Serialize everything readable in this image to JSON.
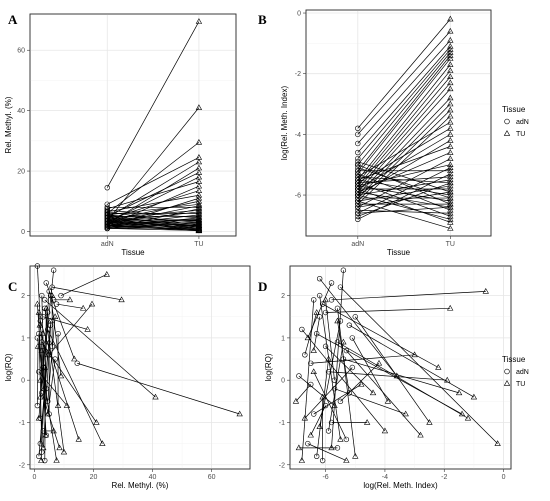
{
  "chart_data": [
    {
      "panel": "A",
      "type": "line",
      "xlabel": "Tissue",
      "ylabel": "Rel. Methyl. (%)",
      "categories": [
        "adN",
        "TU"
      ],
      "ylim": [
        -1.5,
        72
      ],
      "yticks": [
        0,
        20,
        40,
        60
      ],
      "grid": true,
      "pairs": [
        [
          14.5,
          69.5
        ],
        [
          3.5,
          41.0
        ],
        [
          6.0,
          29.5
        ],
        [
          9.0,
          24.5
        ],
        [
          4.5,
          23.0
        ],
        [
          2.5,
          21.0
        ],
        [
          5.0,
          19.5
        ],
        [
          3.0,
          18.0
        ],
        [
          7.5,
          16.5
        ],
        [
          2.0,
          15.0
        ],
        [
          4.0,
          13.5
        ],
        [
          6.5,
          12.0
        ],
        [
          1.5,
          11.0
        ],
        [
          3.5,
          10.0
        ],
        [
          5.5,
          9.0
        ],
        [
          2.5,
          8.5
        ],
        [
          8.0,
          8.0
        ],
        [
          1.0,
          7.5
        ],
        [
          4.5,
          7.0
        ],
        [
          3.0,
          6.5
        ],
        [
          6.0,
          6.0
        ],
        [
          2.0,
          5.5
        ],
        [
          5.0,
          5.0
        ],
        [
          1.5,
          4.5
        ],
        [
          7.0,
          4.5
        ],
        [
          3.5,
          4.0
        ],
        [
          2.5,
          3.8
        ],
        [
          4.0,
          3.5
        ],
        [
          1.0,
          3.2
        ],
        [
          5.5,
          3.0
        ],
        [
          3.0,
          2.8
        ],
        [
          2.0,
          2.5
        ],
        [
          4.5,
          2.3
        ],
        [
          1.5,
          2.0
        ],
        [
          6.5,
          2.0
        ],
        [
          3.5,
          1.8
        ],
        [
          2.5,
          1.5
        ],
        [
          5.0,
          1.5
        ],
        [
          1.0,
          1.2
        ],
        [
          4.0,
          1.0
        ],
        [
          3.0,
          1.0
        ],
        [
          2.0,
          0.8
        ],
        [
          1.5,
          0.6
        ],
        [
          3.5,
          0.5
        ],
        [
          2.5,
          0.4
        ],
        [
          1.0,
          0.3
        ],
        [
          4.5,
          0.3
        ],
        [
          2.0,
          0.2
        ],
        [
          3.0,
          2.0
        ],
        [
          5.5,
          1.0
        ]
      ]
    },
    {
      "panel": "B",
      "type": "line",
      "xlabel": "Tissue",
      "ylabel": "log(Rel. Meth. Index)",
      "categories": [
        "adN",
        "TU"
      ],
      "ylim": [
        -7.35,
        0.1
      ],
      "yticks": [
        0,
        -2,
        -4,
        -6
      ],
      "grid": true,
      "pairs": [
        [
          -3.8,
          -0.2
        ],
        [
          -4.0,
          -0.6
        ],
        [
          -4.3,
          -0.9
        ],
        [
          -4.6,
          -1.1
        ],
        [
          -4.8,
          -1.2
        ],
        [
          -5.0,
          -1.3
        ],
        [
          -5.2,
          -1.4
        ],
        [
          -5.3,
          -1.5
        ],
        [
          -5.5,
          -1.7
        ],
        [
          -5.6,
          -1.9
        ],
        [
          -5.7,
          -2.1
        ],
        [
          -5.8,
          -2.3
        ],
        [
          -5.9,
          -2.5
        ],
        [
          -6.0,
          -2.8
        ],
        [
          -6.1,
          -3.0
        ],
        [
          -6.2,
          -3.2
        ],
        [
          -6.3,
          -3.4
        ],
        [
          -5.4,
          -3.6
        ],
        [
          -5.6,
          -3.8
        ],
        [
          -5.8,
          -4.0
        ],
        [
          -6.0,
          -4.2
        ],
        [
          -5.5,
          -4.4
        ],
        [
          -5.9,
          -4.6
        ],
        [
          -6.4,
          -4.8
        ],
        [
          -5.7,
          -5.0
        ],
        [
          -6.6,
          -5.1
        ],
        [
          -5.2,
          -5.2
        ],
        [
          -6.8,
          -5.3
        ],
        [
          -5.6,
          -5.4
        ],
        [
          -6.0,
          -5.5
        ],
        [
          -5.4,
          -5.6
        ],
        [
          -6.2,
          -5.7
        ],
        [
          -5.8,
          -5.8
        ],
        [
          -6.4,
          -5.9
        ],
        [
          -5.5,
          -6.0
        ],
        [
          -6.1,
          -6.1
        ],
        [
          -5.7,
          -6.2
        ],
        [
          -6.3,
          -6.3
        ],
        [
          -5.9,
          -6.4
        ],
        [
          -5.3,
          -6.5
        ],
        [
          -6.5,
          -6.6
        ],
        [
          -5.6,
          -6.7
        ],
        [
          -6.0,
          -6.8
        ],
        [
          -5.8,
          -6.9
        ],
        [
          -6.2,
          -7.1
        ],
        [
          -5.0,
          -6.3
        ],
        [
          -4.9,
          -5.9
        ],
        [
          -6.7,
          -5.6
        ],
        [
          -5.1,
          -6.1
        ],
        [
          -6.6,
          -6.4
        ]
      ]
    },
    {
      "panel": "C",
      "type": "scatter",
      "xlabel": "Rel. Methyl. (%)",
      "ylabel": "log(RQ)",
      "xlim": [
        -1.5,
        73
      ],
      "ylim": [
        -2.1,
        2.7
      ],
      "xticks": [
        0,
        20,
        40,
        60
      ],
      "yticks": [
        -2,
        -1,
        0,
        1,
        2
      ],
      "grid": true,
      "pairs": [
        {
          "adN": [
            14.5,
            0.4
          ],
          "TU": [
            69.5,
            -0.8
          ]
        },
        {
          "adN": [
            3.5,
            1.9
          ],
          "TU": [
            41.0,
            -0.4
          ]
        },
        {
          "adN": [
            6.0,
            2.2
          ],
          "TU": [
            29.5,
            1.9
          ]
        },
        {
          "adN": [
            9.0,
            2.0
          ],
          "TU": [
            24.5,
            2.5
          ]
        },
        {
          "adN": [
            4.5,
            1.2
          ],
          "TU": [
            23.0,
            -1.5
          ]
        },
        {
          "adN": [
            2.5,
            0.9
          ],
          "TU": [
            21.0,
            -1.0
          ]
        },
        {
          "adN": [
            5.0,
            0.6
          ],
          "TU": [
            19.5,
            1.8
          ]
        },
        {
          "adN": [
            3.0,
            1.5
          ],
          "TU": [
            18.0,
            1.2
          ]
        },
        {
          "adN": [
            7.5,
            1.8
          ],
          "TU": [
            16.5,
            1.7
          ]
        },
        {
          "adN": [
            2.0,
            1.4
          ],
          "TU": [
            15.0,
            -1.4
          ]
        },
        {
          "adN": [
            4.0,
            2.3
          ],
          "TU": [
            13.5,
            0.5
          ]
        },
        {
          "adN": [
            6.5,
            1.9
          ],
          "TU": [
            12.0,
            1.9
          ]
        },
        {
          "adN": [
            1.5,
            0.2
          ],
          "TU": [
            11.0,
            -0.6
          ]
        },
        {
          "adN": [
            3.5,
            1.7
          ],
          "TU": [
            10.0,
            -1.7
          ]
        },
        {
          "adN": [
            5.5,
            2.0
          ],
          "TU": [
            9.0,
            0.1
          ]
        },
        {
          "adN": [
            2.5,
            -0.3
          ],
          "TU": [
            8.5,
            -1.6
          ]
        },
        {
          "adN": [
            8.0,
            1.1
          ],
          "TU": [
            8.0,
            -0.6
          ]
        },
        {
          "adN": [
            1.0,
            1.0
          ],
          "TU": [
            7.5,
            -1.9
          ]
        },
        {
          "adN": [
            4.5,
            -0.5
          ],
          "TU": [
            7.0,
            1.5
          ]
        },
        {
          "adN": [
            3.0,
            -1.2
          ],
          "TU": [
            6.5,
            -1.2
          ]
        },
        {
          "adN": [
            6.0,
            0.8
          ],
          "TU": [
            6.0,
            2.0
          ]
        },
        {
          "adN": [
            2.0,
            -1.5
          ],
          "TU": [
            5.5,
            1.4
          ]
        },
        {
          "adN": [
            5.0,
            -0.8
          ],
          "TU": [
            5.0,
            0.9
          ]
        },
        {
          "adN": [
            1.5,
            -1.8
          ],
          "TU": [
            4.5,
            0.6
          ]
        },
        {
          "adN": [
            7.0,
            0.5
          ],
          "TU": [
            4.5,
            -0.8
          ]
        },
        {
          "adN": [
            3.5,
            -1.9
          ],
          "TU": [
            4.0,
            1.7
          ]
        },
        {
          "adN": [
            2.5,
            2.0
          ],
          "TU": [
            3.8,
            -1.3
          ]
        },
        {
          "adN": [
            4.0,
            -0.2
          ],
          "TU": [
            3.5,
            0.3
          ]
        },
        {
          "adN": [
            1.0,
            2.7
          ],
          "TU": [
            3.2,
            -0.2
          ]
        },
        {
          "adN": [
            5.5,
            1.3
          ],
          "TU": [
            3.0,
            -1.6
          ]
        },
        {
          "adN": [
            3.0,
            0.3
          ],
          "TU": [
            2.8,
            1.1
          ]
        },
        {
          "adN": [
            2.0,
            -0.9
          ],
          "TU": [
            2.5,
            0.7
          ]
        },
        {
          "adN": [
            4.5,
            1.6
          ],
          "TU": [
            2.3,
            -1.9
          ]
        },
        {
          "adN": [
            1.5,
            1.1
          ],
          "TU": [
            2.0,
            0.0
          ]
        },
        {
          "adN": [
            6.5,
            2.6
          ],
          "TU": [
            2.0,
            -0.4
          ]
        },
        {
          "adN": [
            3.5,
            0.7
          ],
          "TU": [
            1.8,
            1.3
          ]
        },
        {
          "adN": [
            2.5,
            -1.7
          ],
          "TU": [
            1.5,
            1.6
          ]
        },
        {
          "adN": [
            5.0,
            2.1
          ],
          "TU": [
            1.5,
            -0.9
          ]
        },
        {
          "adN": [
            1.0,
            -0.6
          ],
          "TU": [
            1.2,
            0.8
          ]
        },
        {
          "adN": [
            4.0,
            -1.3
          ],
          "TU": [
            1.0,
            1.8
          ]
        }
      ]
    },
    {
      "panel": "D",
      "type": "scatter",
      "xlabel": "log(Rel. Meth. Index)",
      "ylabel": "log(RQ)",
      "xlim": [
        -7.2,
        0.25
      ],
      "ylim": [
        -2.1,
        2.7
      ],
      "xticks": [
        -6,
        -4,
        -2,
        0
      ],
      "yticks": [
        -2,
        -1,
        0,
        1,
        2
      ],
      "grid": true,
      "pairs": [
        {
          "adN": [
            -5.5,
            2.2
          ],
          "TU": [
            -0.2,
            -1.5
          ]
        },
        {
          "adN": [
            -5.8,
            1.9
          ],
          "TU": [
            -0.6,
            2.1
          ]
        },
        {
          "adN": [
            -6.0,
            1.6
          ],
          "TU": [
            -1.8,
            1.7
          ]
        },
        {
          "adN": [
            -5.2,
            1.3
          ],
          "TU": [
            -1.0,
            -0.4
          ]
        },
        {
          "adN": [
            -5.6,
            0.9
          ],
          "TU": [
            -1.2,
            -0.9
          ]
        },
        {
          "adN": [
            -6.3,
            1.1
          ],
          "TU": [
            -1.4,
            -0.8
          ]
        },
        {
          "adN": [
            -5.4,
            0.5
          ],
          "TU": [
            -1.5,
            -0.3
          ]
        },
        {
          "adN": [
            -5.9,
            0.2
          ],
          "TU": [
            -1.9,
            0.0
          ]
        },
        {
          "adN": [
            -6.1,
            1.8
          ],
          "TU": [
            -2.2,
            0.3
          ]
        },
        {
          "adN": [
            -5.0,
            1.5
          ],
          "TU": [
            -2.5,
            -1.0
          ]
        },
        {
          "adN": [
            -5.3,
            0.7
          ],
          "TU": [
            -2.8,
            -1.3
          ]
        },
        {
          "adN": [
            -6.5,
            0.4
          ],
          "TU": [
            -3.0,
            0.6
          ]
        },
        {
          "adN": [
            -5.7,
            -0.2
          ],
          "TU": [
            -3.3,
            -0.8
          ]
        },
        {
          "adN": [
            -6.2,
            2.4
          ],
          "TU": [
            -3.6,
            0.1
          ]
        },
        {
          "adN": [
            -5.1,
            1.0
          ],
          "TU": [
            -3.9,
            -0.5
          ]
        },
        {
          "adN": [
            -6.8,
            1.2
          ],
          "TU": [
            -4.0,
            -1.2
          ]
        },
        {
          "adN": [
            -5.5,
            -0.5
          ],
          "TU": [
            -4.2,
            0.4
          ]
        },
        {
          "adN": [
            -6.0,
            0.8
          ],
          "TU": [
            -4.4,
            -0.3
          ]
        },
        {
          "adN": [
            -5.8,
            -1.0
          ],
          "TU": [
            -4.6,
            -1.0
          ]
        },
        {
          "adN": [
            -6.4,
            -0.8
          ],
          "TU": [
            -4.8,
            -0.1
          ]
        },
        {
          "adN": [
            -5.6,
            1.7
          ],
          "TU": [
            -5.0,
            -1.8
          ]
        },
        {
          "adN": [
            -6.6,
            -1.5
          ],
          "TU": [
            -5.3,
            -1.9
          ]
        },
        {
          "adN": [
            -5.9,
            -1.2
          ],
          "TU": [
            -5.4,
            0.9
          ]
        },
        {
          "adN": [
            -6.2,
            2.0
          ],
          "TU": [
            -5.5,
            -1.4
          ]
        },
        {
          "adN": [
            -5.2,
            -0.3
          ],
          "TU": [
            -5.6,
            1.4
          ]
        },
        {
          "adN": [
            -6.9,
            0.1
          ],
          "TU": [
            -5.7,
            -0.6
          ]
        },
        {
          "adN": [
            -5.4,
            2.6
          ],
          "TU": [
            -5.8,
            -1.6
          ]
        },
        {
          "adN": [
            -6.3,
            -1.8
          ],
          "TU": [
            -5.9,
            0.5
          ]
        },
        {
          "adN": [
            -5.7,
            0.0
          ],
          "TU": [
            -6.0,
            1.9
          ]
        },
        {
          "adN": [
            -6.1,
            -1.9
          ],
          "TU": [
            -6.1,
            -0.4
          ]
        },
        {
          "adN": [
            -5.5,
            1.4
          ],
          "TU": [
            -6.2,
            -1.1
          ]
        },
        {
          "adN": [
            -6.7,
            0.6
          ],
          "TU": [
            -6.3,
            1.6
          ]
        },
        {
          "adN": [
            -5.3,
            -1.4
          ],
          "TU": [
            -6.4,
            0.2
          ]
        },
        {
          "adN": [
            -6.0,
            -0.6
          ],
          "TU": [
            -6.5,
            -1.3
          ]
        },
        {
          "adN": [
            -5.8,
            2.3
          ],
          "TU": [
            -6.6,
            1.0
          ]
        },
        {
          "adN": [
            -6.4,
            1.9
          ],
          "TU": [
            -6.8,
            -1.9
          ]
        },
        {
          "adN": [
            -5.1,
            0.3
          ],
          "TU": [
            -6.7,
            -0.9
          ]
        },
        {
          "adN": [
            -6.5,
            -0.1
          ],
          "TU": [
            -7.0,
            -0.5
          ]
        },
        {
          "adN": [
            -5.6,
            -1.6
          ],
          "TU": [
            -6.9,
            -1.6
          ]
        },
        {
          "adN": [
            -6.2,
            1.5
          ],
          "TU": [
            -6.4,
            0.7
          ]
        }
      ]
    }
  ],
  "legend": {
    "title": "Tissue",
    "items": [
      {
        "label": "adN",
        "shape": "circle"
      },
      {
        "label": "TU",
        "shape": "triangle"
      }
    ]
  },
  "colors": {
    "panel_border": "#333333",
    "grid": "#e6e6e6",
    "line": "#000000",
    "tick_text": "#4d4d4d"
  }
}
